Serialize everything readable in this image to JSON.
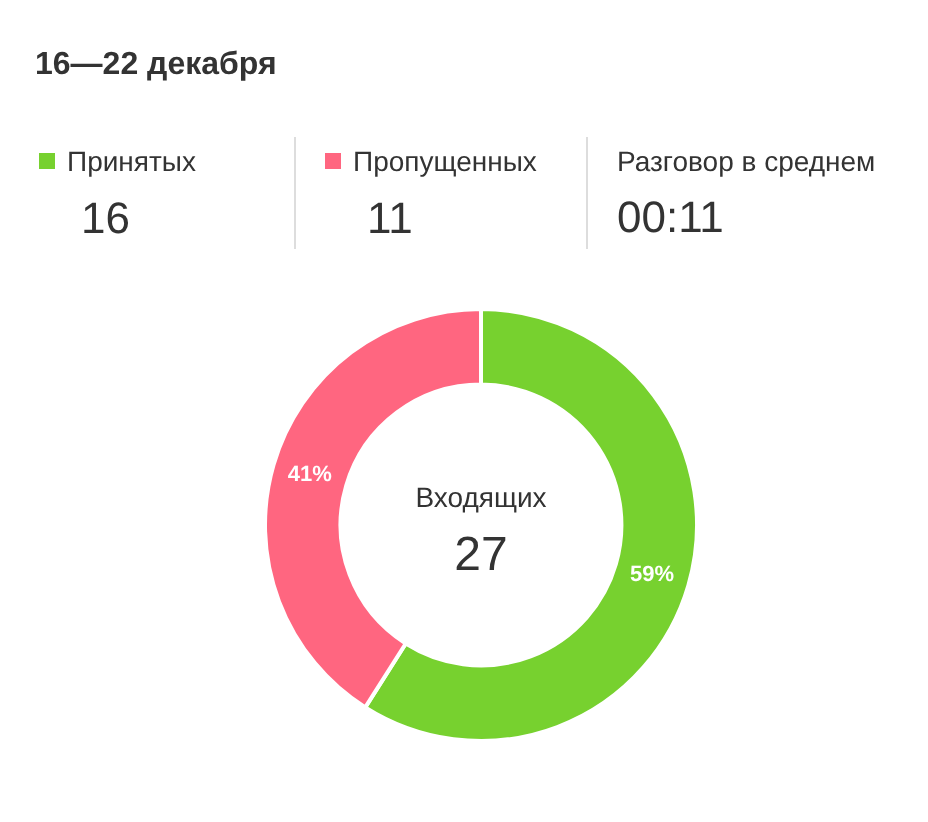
{
  "chart_data": {
    "type": "donut",
    "title": "16—22 декабря",
    "categories": [
      "Принятых",
      "Пропущенных"
    ],
    "values": [
      59,
      41
    ],
    "colors": [
      "#77d12f",
      "#ff6680"
    ],
    "value_labels": [
      "59%",
      "41%"
    ],
    "legend": "top",
    "annotations": [
      "16",
      "11",
      "Разговор в среднем",
      "00:11",
      "Входящих",
      "27"
    ]
  }
}
